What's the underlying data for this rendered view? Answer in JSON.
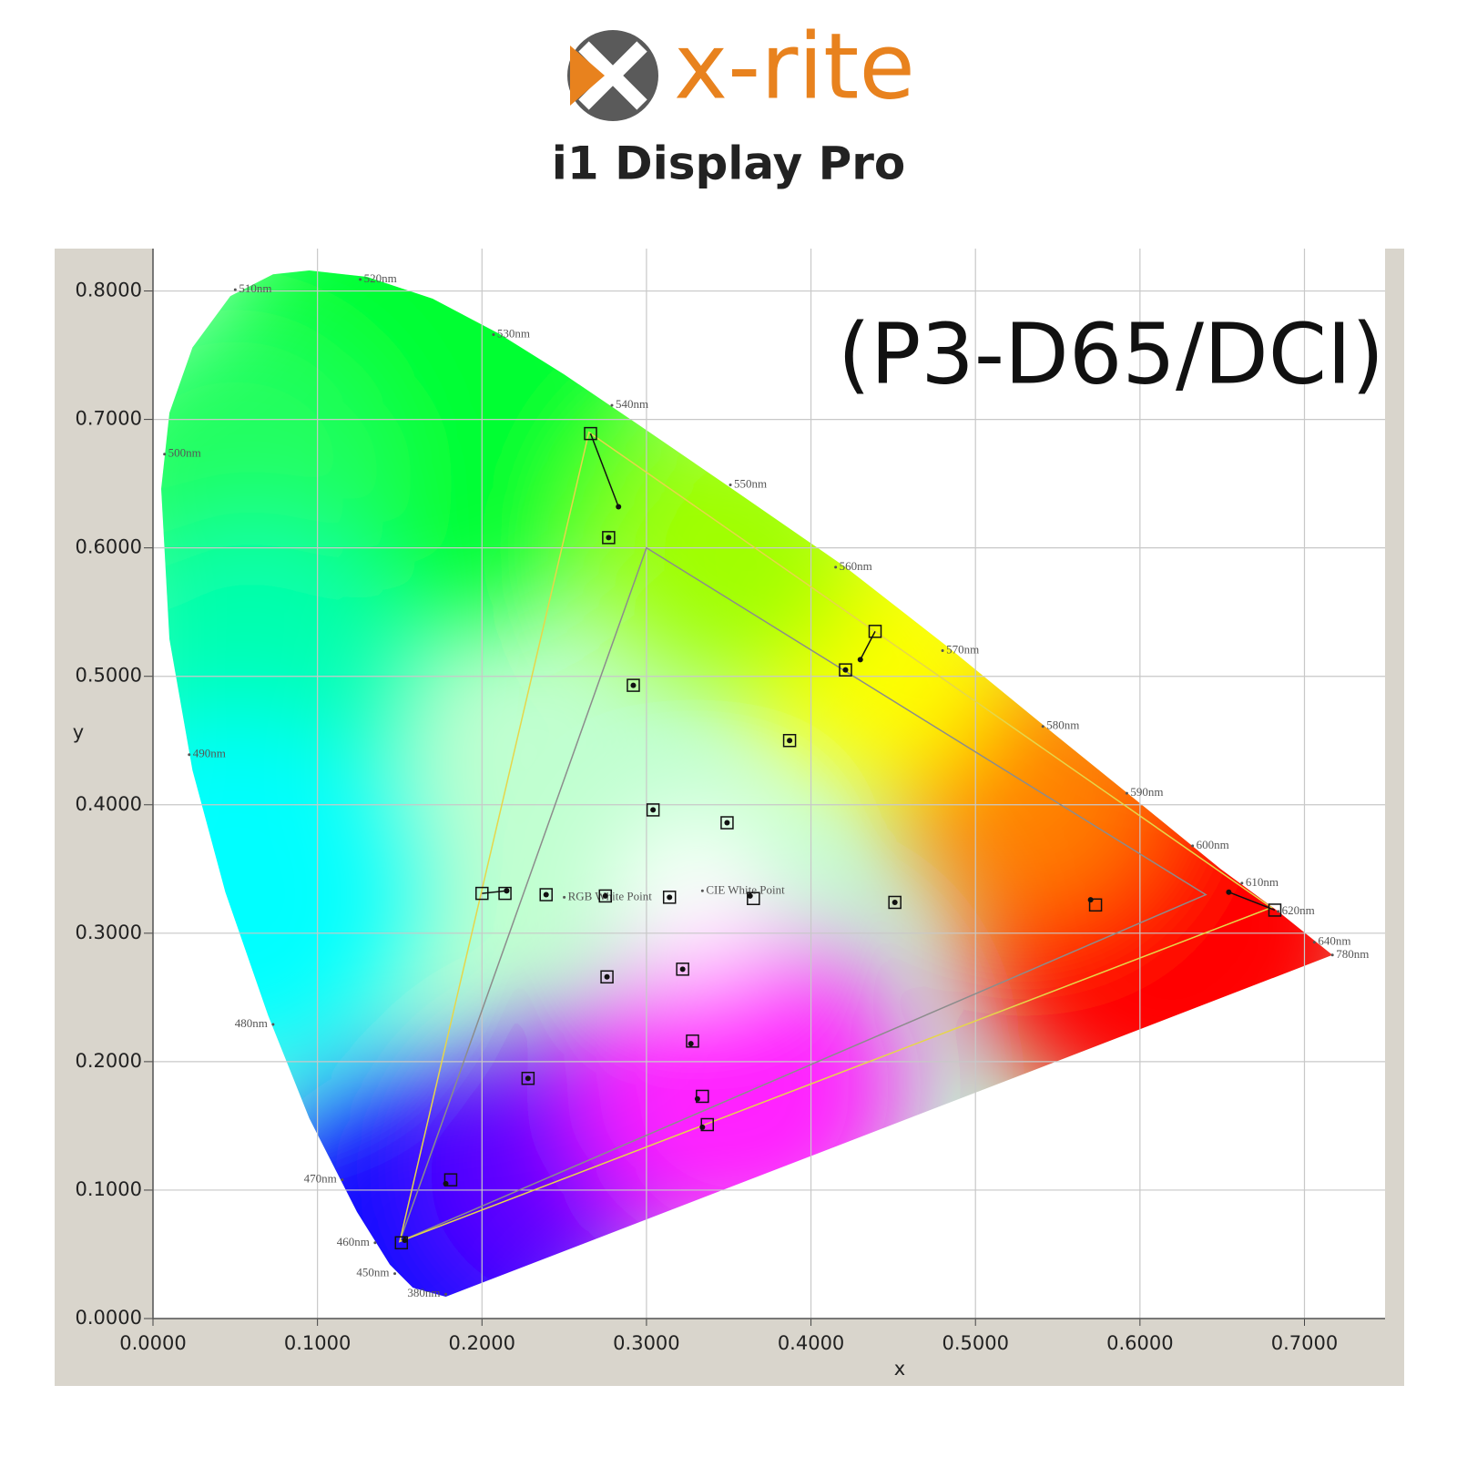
{
  "header": {
    "brand": "x-rite",
    "product": "i1 Display Pro"
  },
  "chart_data": {
    "type": "scatter",
    "title": "(P3-D65/DCI)",
    "xlabel": "x",
    "ylabel": "y",
    "xlim": [
      0,
      0.749
    ],
    "ylim": [
      0,
      0.833
    ],
    "xticks": [
      {
        "value": 0,
        "label": "0.0000"
      },
      {
        "value": 0.1,
        "label": "0.1000"
      },
      {
        "value": 0.2,
        "label": "0.2000"
      },
      {
        "value": 0.3,
        "label": "0.3000"
      },
      {
        "value": 0.4,
        "label": "0.4000"
      },
      {
        "value": 0.5,
        "label": "0.5000"
      },
      {
        "value": 0.6,
        "label": "0.6000"
      },
      {
        "value": 0.7,
        "label": "0.7000"
      }
    ],
    "yticks": [
      {
        "value": 0,
        "label": "0.0000"
      },
      {
        "value": 0.1,
        "label": "0.1000"
      },
      {
        "value": 0.2,
        "label": "0.2000"
      },
      {
        "value": 0.3,
        "label": "0.3000"
      },
      {
        "value": 0.4,
        "label": "0.4000"
      },
      {
        "value": 0.5,
        "label": "0.5000"
      },
      {
        "value": 0.6,
        "label": "0.6000"
      },
      {
        "value": 0.7,
        "label": "0.7000"
      },
      {
        "value": 0.8,
        "label": "0.8000"
      }
    ],
    "grid": true,
    "locus": {
      "x": [
        0.178,
        0.158,
        0.144,
        0.124,
        0.095,
        0.07,
        0.044,
        0.024,
        0.01,
        0.005,
        0.01,
        0.024,
        0.047,
        0.073,
        0.095,
        0.13,
        0.17,
        0.21,
        0.25,
        0.295,
        0.352,
        0.421,
        0.484,
        0.547,
        0.604,
        0.649,
        0.684,
        0.717
      ],
      "y": [
        0.017,
        0.024,
        0.042,
        0.083,
        0.156,
        0.236,
        0.332,
        0.427,
        0.529,
        0.646,
        0.705,
        0.756,
        0.796,
        0.813,
        0.816,
        0.811,
        0.794,
        0.767,
        0.735,
        0.696,
        0.646,
        0.585,
        0.522,
        0.456,
        0.397,
        0.35,
        0.317,
        0.283
      ]
    },
    "gamuts": [
      {
        "color": "#8c8c8c",
        "x": [
          0.3,
          0.64,
          0.15
        ],
        "y": [
          0.6,
          0.33,
          0.06
        ]
      },
      {
        "color": "#e6d64a",
        "x": [
          0.265,
          0.68,
          0.15
        ],
        "y": [
          0.69,
          0.32,
          0.06
        ]
      }
    ],
    "targets": {
      "x": [
        0.266,
        0.277,
        0.439,
        0.421,
        0.292,
        0.387,
        0.304,
        0.349,
        0.2,
        0.214,
        0.239,
        0.275,
        0.314,
        0.365,
        0.451,
        0.573,
        0.682,
        0.322,
        0.276,
        0.328,
        0.228,
        0.334,
        0.337,
        0.181,
        0.151
      ],
      "y": [
        0.689,
        0.608,
        0.535,
        0.505,
        0.493,
        0.45,
        0.396,
        0.386,
        0.331,
        0.331,
        0.33,
        0.329,
        0.328,
        0.327,
        0.324,
        0.322,
        0.318,
        0.272,
        0.266,
        0.216,
        0.187,
        0.173,
        0.151,
        0.108,
        0.059
      ]
    },
    "measured": {
      "x": [
        0.283,
        0.277,
        0.43,
        0.421,
        0.292,
        0.387,
        0.304,
        0.349,
        0.215,
        0.215,
        0.239,
        0.275,
        0.314,
        0.363,
        0.451,
        0.57,
        0.654,
        0.322,
        0.276,
        0.327,
        0.228,
        0.331,
        0.334,
        0.178,
        0.153
      ],
      "y": [
        0.632,
        0.608,
        0.513,
        0.505,
        0.493,
        0.45,
        0.396,
        0.386,
        0.333,
        0.333,
        0.33,
        0.329,
        0.328,
        0.329,
        0.324,
        0.326,
        0.332,
        0.272,
        0.266,
        0.214,
        0.187,
        0.171,
        0.149,
        0.105,
        0.061
      ]
    },
    "annotations": [
      {
        "text": "510nm",
        "x": 0.05,
        "y": 0.801
      },
      {
        "text": "520nm",
        "x": 0.126,
        "y": 0.809
      },
      {
        "text": "530nm",
        "x": 0.207,
        "y": 0.766
      },
      {
        "text": "540nm",
        "x": 0.279,
        "y": 0.711
      },
      {
        "text": "550nm",
        "x": 0.351,
        "y": 0.649
      },
      {
        "text": "560nm",
        "x": 0.415,
        "y": 0.585
      },
      {
        "text": "570nm",
        "x": 0.48,
        "y": 0.52
      },
      {
        "text": "580nm",
        "x": 0.541,
        "y": 0.461
      },
      {
        "text": "590nm",
        "x": 0.592,
        "y": 0.409
      },
      {
        "text": "600nm",
        "x": 0.632,
        "y": 0.368
      },
      {
        "text": "610nm",
        "x": 0.662,
        "y": 0.339
      },
      {
        "text": "620nm",
        "x": 0.684,
        "y": 0.317
      },
      {
        "text": "640nm",
        "x": 0.706,
        "y": 0.293
      },
      {
        "text": "780nm",
        "x": 0.717,
        "y": 0.283
      },
      {
        "text": "500nm",
        "x": 0.007,
        "y": 0.673
      },
      {
        "text": "490nm",
        "x": 0.022,
        "y": 0.439
      },
      {
        "text": "480nm",
        "x": 0.073,
        "y": 0.229
      },
      {
        "text": "470nm",
        "x": 0.115,
        "y": 0.108
      },
      {
        "text": "460nm",
        "x": 0.135,
        "y": 0.059
      },
      {
        "text": "450nm",
        "x": 0.147,
        "y": 0.035
      },
      {
        "text": "380nm",
        "x": 0.178,
        "y": 0.019
      },
      {
        "text": "RGB White Point",
        "x": 0.25,
        "y": 0.328
      },
      {
        "text": "CIE White Point",
        "x": 0.334,
        "y": 0.333
      }
    ]
  }
}
